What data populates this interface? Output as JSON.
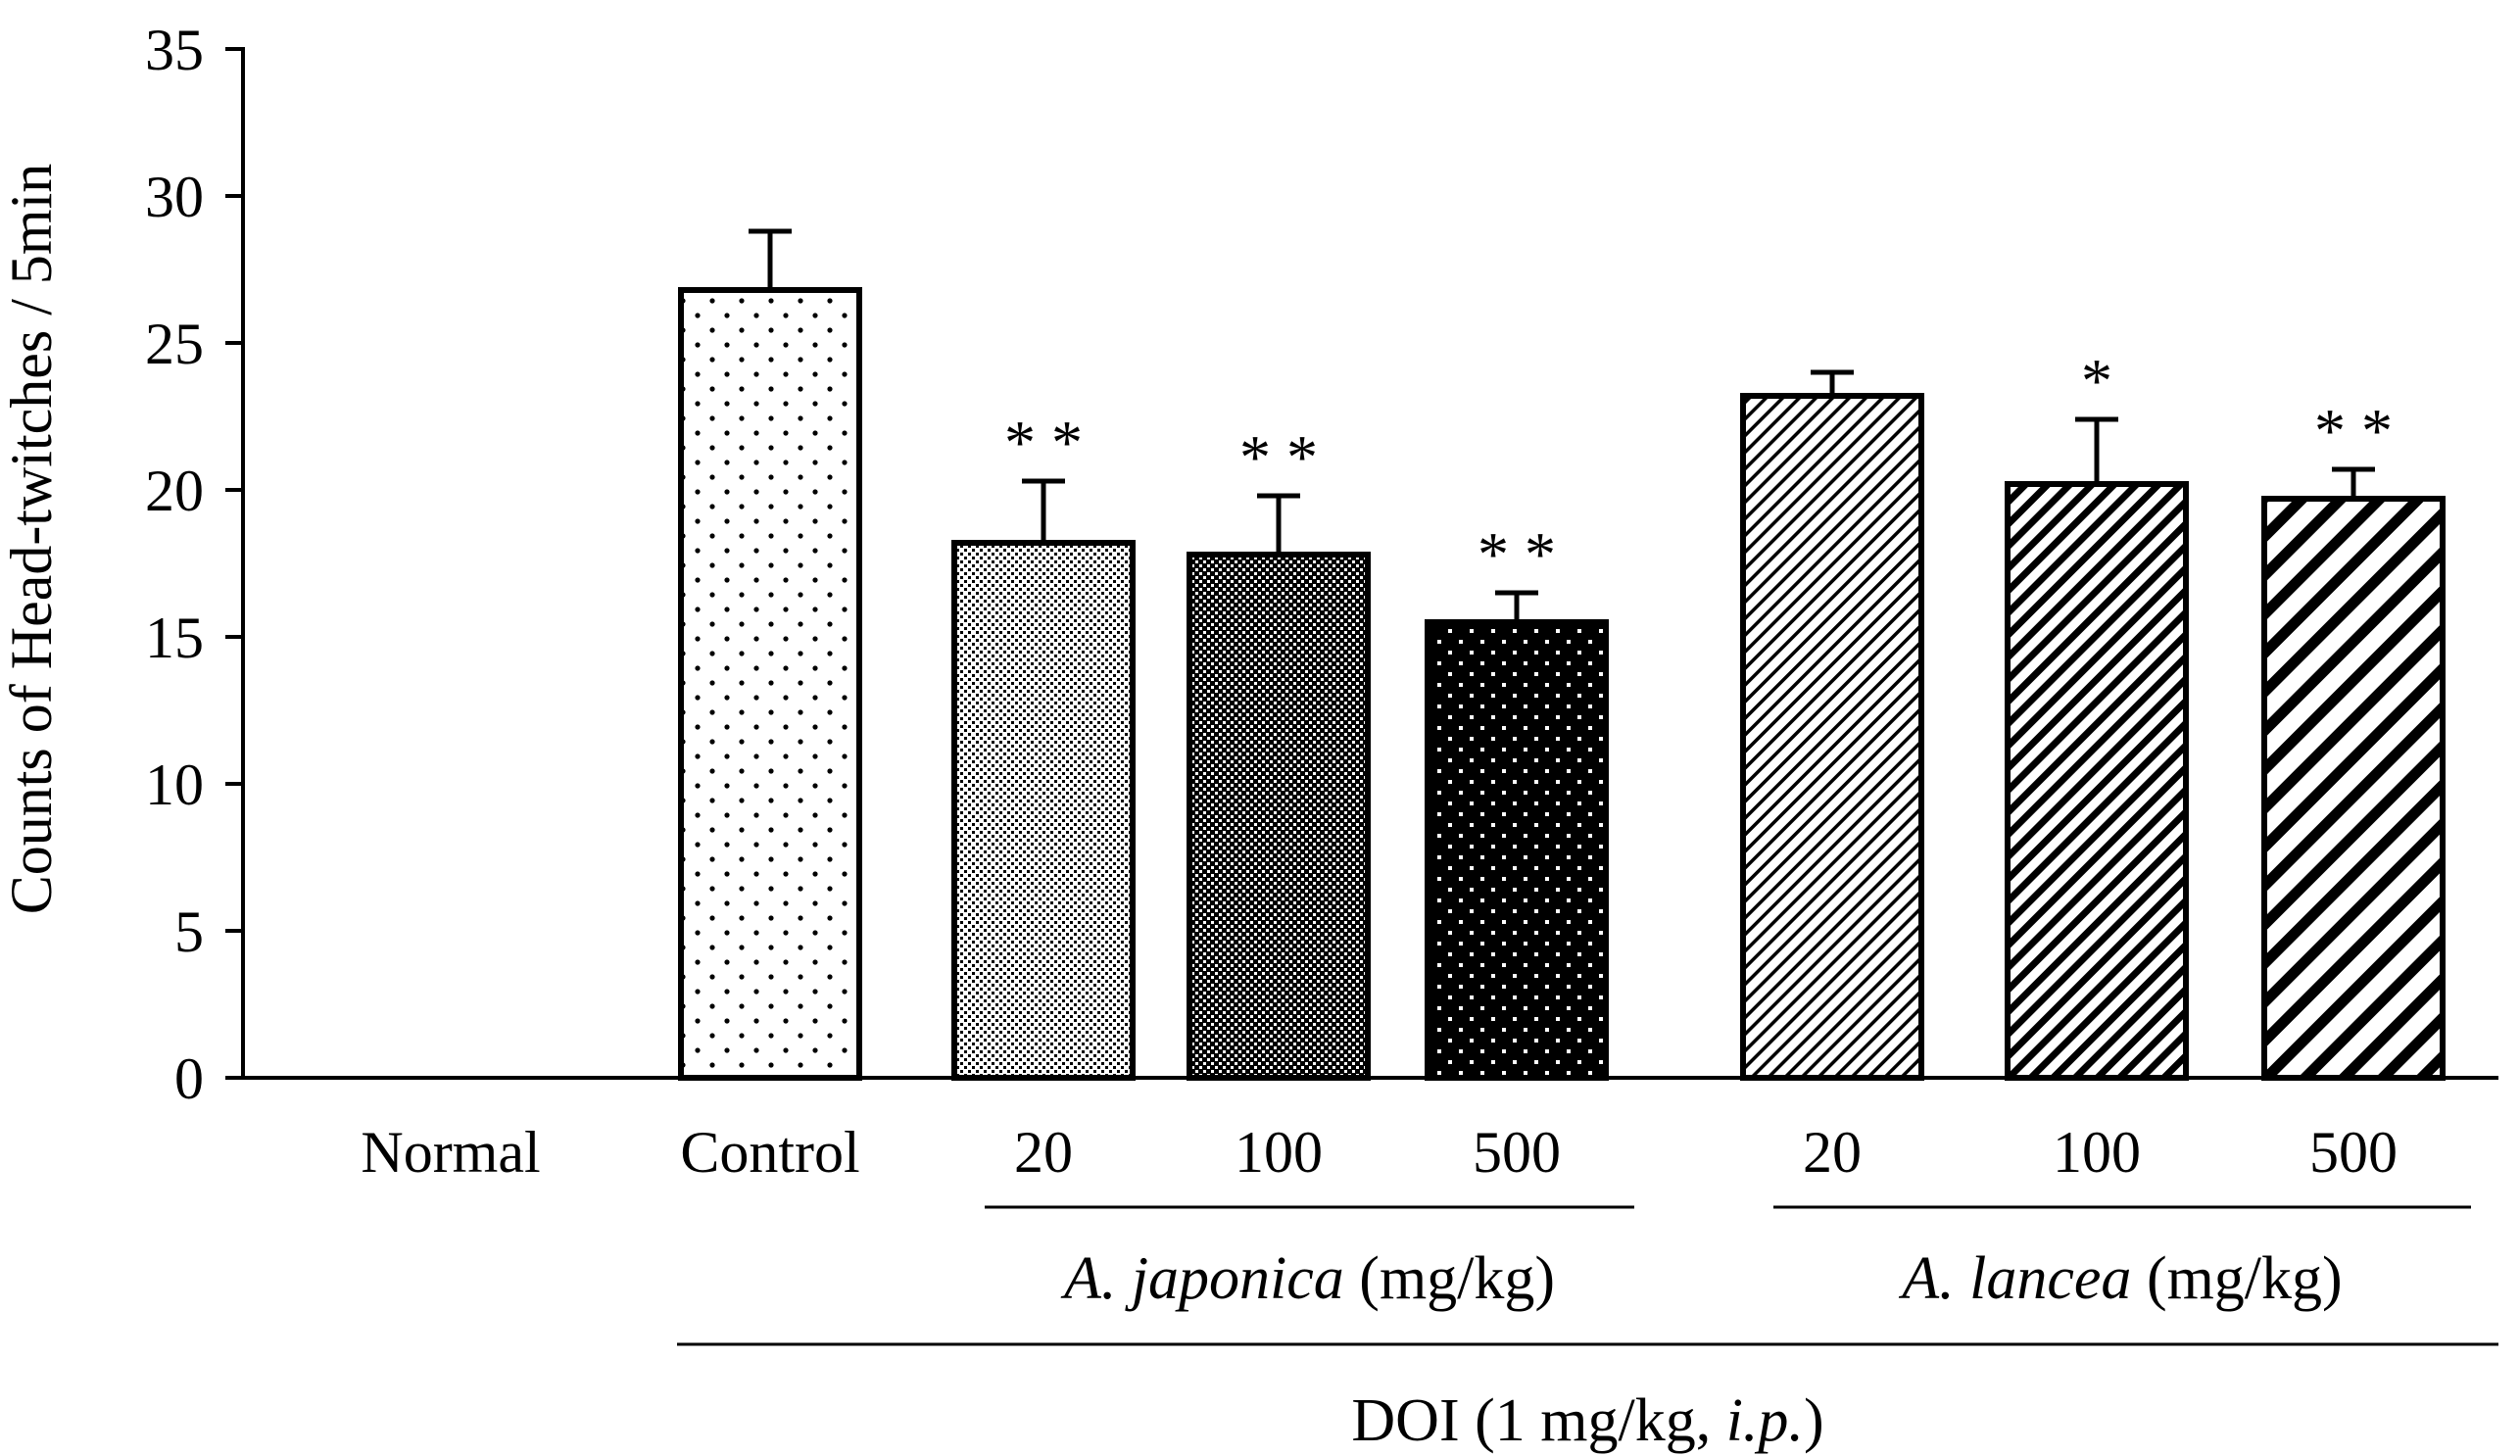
{
  "chart_data": {
    "type": "bar",
    "title": "",
    "xlabel": "",
    "ylabel": "Counts of Head-twitches / 5min",
    "ylim": [
      0,
      35
    ],
    "yticks": [
      "0",
      "5",
      "10",
      "15",
      "20",
      "25",
      "30",
      "35"
    ],
    "grid": false,
    "categories": [
      "Normal",
      "Control",
      "20",
      "100",
      "500",
      "20",
      "100",
      "500"
    ],
    "values": [
      0,
      26.8,
      18.2,
      17.8,
      15.5,
      23.2,
      20.2,
      19.7
    ],
    "errors": [
      0,
      2.0,
      2.1,
      2.0,
      1.0,
      0.8,
      2.2,
      1.0
    ],
    "significance": [
      "",
      "",
      "**",
      "**",
      "**",
      "",
      "*",
      "**"
    ],
    "patterns": [
      "none",
      "sparse-dots",
      "fine-dots",
      "dense-dots",
      "dark-dots",
      "fine-diagonal",
      "medium-diagonal",
      "bold-diagonal"
    ],
    "groups": [
      {
        "label_italic": "A. japonica",
        "label_unit": " (mg/kg)",
        "categories": [
          2,
          3,
          4
        ]
      },
      {
        "label_italic": "A. lancea",
        "label_unit": " (mg/kg)",
        "categories": [
          5,
          6,
          7
        ]
      }
    ],
    "treatment": {
      "prefix": "DOI (1 mg/kg, ",
      "italic": "i.p.",
      "suffix": ")",
      "categories": [
        1,
        2,
        3,
        4,
        5,
        6,
        7
      ]
    }
  },
  "colors": {
    "ink": "#000000",
    "background": "#ffffff"
  }
}
